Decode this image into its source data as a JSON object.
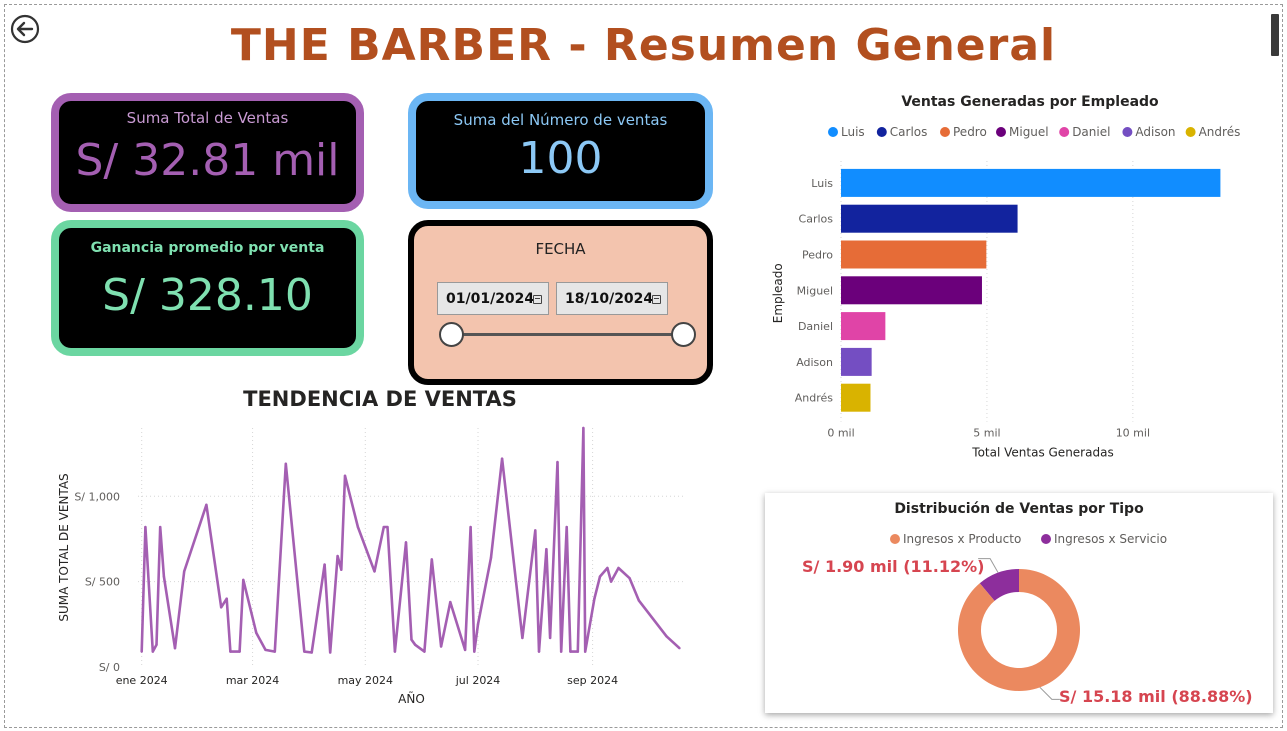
{
  "page_title": "THE BARBER - Resumen General",
  "nav": {
    "back_icon": "back-arrow-icon"
  },
  "kpis": {
    "total_sales": {
      "label": "Suma Total de Ventas",
      "value": "S/ 32.81 mil",
      "accent": "#a45fb2"
    },
    "sales_count": {
      "label": "Suma del Número de ventas",
      "value": "100",
      "accent": "#6bb6f4"
    },
    "avg_profit": {
      "label": "Ganancia promedio por venta",
      "value": "S/ 328.10",
      "accent": "#6bd6a1"
    }
  },
  "date_slicer": {
    "title": "FECHA",
    "start": "01/01/2024",
    "end": "18/10/2024",
    "icon": "calendar-icon",
    "background": "#f3c4ae"
  },
  "chart_data": [
    {
      "id": "trend",
      "type": "line",
      "title": "TENDENCIA DE VENTAS",
      "xlabel": "AÑO",
      "ylabel": "SUMA TOTAL DE VENTAS",
      "color": "#a45fb2",
      "ylim": [
        0,
        1400
      ],
      "xlim": [
        "2023-12-30",
        "2024-10-21"
      ],
      "y_ticks": [
        0,
        500,
        1000
      ],
      "y_tick_labels": [
        "S/ 0",
        "S/ 500",
        "S/ 1,000"
      ],
      "x_ticks": [
        "2024-01-01",
        "2024-03-01",
        "2024-05-01",
        "2024-07-01",
        "2024-09-01"
      ],
      "x_tick_labels": [
        "ene 2024",
        "mar 2024",
        "may 2024",
        "jul 2024",
        "sep 2024"
      ],
      "grid": true,
      "x": [
        "2024-01-01",
        "2024-01-03",
        "2024-01-07",
        "2024-01-09",
        "2024-01-11",
        "2024-01-13",
        "2024-01-19",
        "2024-01-24",
        "2024-02-05",
        "2024-02-13",
        "2024-02-16",
        "2024-02-18",
        "2024-02-23",
        "2024-02-25",
        "2024-03-03",
        "2024-03-08",
        "2024-03-13",
        "2024-03-19",
        "2024-03-29",
        "2024-04-02",
        "2024-04-09",
        "2024-04-12",
        "2024-04-16",
        "2024-04-18",
        "2024-04-20",
        "2024-04-27",
        "2024-05-06",
        "2024-05-11",
        "2024-05-13",
        "2024-05-17",
        "2024-05-23",
        "2024-05-26",
        "2024-05-28",
        "2024-06-02",
        "2024-06-06",
        "2024-06-11",
        "2024-06-16",
        "2024-06-24",
        "2024-06-27",
        "2024-06-29",
        "2024-07-01",
        "2024-07-08",
        "2024-07-14",
        "2024-07-25",
        "2024-08-01",
        "2024-08-03",
        "2024-08-07",
        "2024-08-09",
        "2024-08-13",
        "2024-08-15",
        "2024-08-18",
        "2024-08-20",
        "2024-08-24",
        "2024-08-27",
        "2024-08-28",
        "2024-09-02",
        "2024-09-05",
        "2024-09-09",
        "2024-09-11",
        "2024-09-15",
        "2024-09-21",
        "2024-09-26",
        "2024-10-11",
        "2024-10-18"
      ],
      "y": [
        90,
        820,
        90,
        130,
        820,
        530,
        110,
        560,
        950,
        350,
        400,
        90,
        90,
        510,
        200,
        100,
        90,
        1190,
        90,
        85,
        600,
        85,
        650,
        570,
        1120,
        820,
        560,
        820,
        820,
        90,
        730,
        160,
        130,
        90,
        630,
        120,
        380,
        100,
        820,
        90,
        250,
        640,
        1220,
        170,
        800,
        90,
        690,
        170,
        1200,
        90,
        820,
        90,
        90,
        1400,
        90,
        400,
        530,
        580,
        500,
        580,
        520,
        390,
        180,
        110
      ]
    },
    {
      "id": "by_employee",
      "type": "bar",
      "orientation": "horizontal",
      "title": "Ventas Generadas por Empleado",
      "xlabel": "Total Ventas Generadas",
      "ylabel": "Empleado",
      "xlim": [
        0,
        13500
      ],
      "x_ticks": [
        0,
        5000,
        10000
      ],
      "x_tick_labels": [
        "0 mil",
        "5 mil",
        "10 mil"
      ],
      "grid": true,
      "legend": "top",
      "categories": [
        "Luis",
        "Carlos",
        "Pedro",
        "Miguel",
        "Daniel",
        "Adison",
        "Andrés"
      ],
      "values": [
        13000,
        6050,
        4980,
        4830,
        1520,
        1050,
        1010
      ],
      "colors": [
        "#118dff",
        "#12239e",
        "#e66c37",
        "#6b007b",
        "#e044a7",
        "#744ec2",
        "#d9b300"
      ]
    },
    {
      "id": "by_type",
      "type": "pie",
      "donut": true,
      "title": "Distribución de Ventas por Tipo",
      "legend": "top",
      "categories": [
        "Ingresos x Producto",
        "Ingresos x Servicio"
      ],
      "values": [
        15.18,
        1.9
      ],
      "percent": [
        88.88,
        11.12
      ],
      "data_labels": [
        "S/ 15.18 mil (88.88%)",
        "S/ 1.90 mil (11.12%)"
      ],
      "colors": [
        "#eb895f",
        "#8d2e9c"
      ],
      "label_color": "#d64550"
    }
  ]
}
